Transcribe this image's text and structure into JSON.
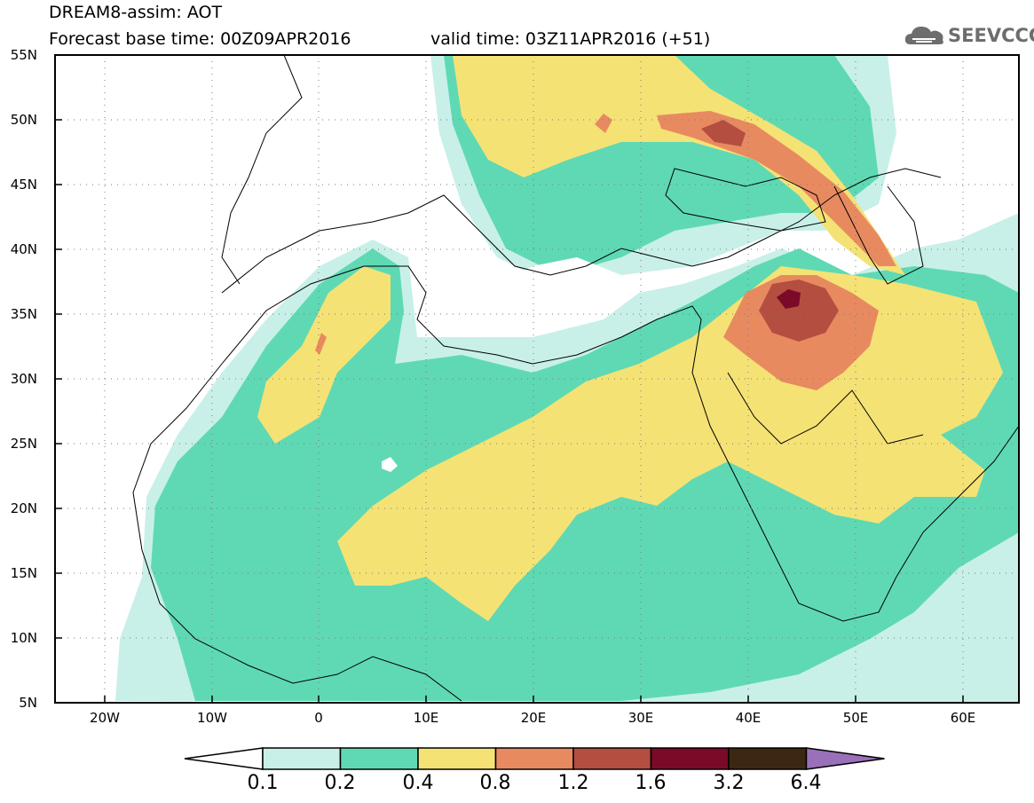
{
  "header": {
    "line1": "DREAM8-assim: AOT",
    "line2": "Forecast base time: 00Z09APR2016",
    "line3": "valid time: 03Z11APR2016 (+51)",
    "logo_text": "SEEVCCC",
    "logo_icon": "cloud-icon"
  },
  "map": {
    "lat_labels": [
      "55N",
      "50N",
      "45N",
      "40N",
      "35N",
      "30N",
      "25N",
      "20N",
      "15N",
      "10N",
      "5N"
    ],
    "lon_labels": [
      "20W",
      "10W",
      "0",
      "10E",
      "20E",
      "30E",
      "40E",
      "50E",
      "60E"
    ],
    "lat_range": [
      5,
      55
    ],
    "lon_range": [
      -25,
      65
    ],
    "grid": "dotted"
  },
  "colorbar": {
    "labels": [
      "0.1",
      "0.2",
      "0.4",
      "0.8",
      "1.2",
      "1.6",
      "3.2",
      "6.4"
    ],
    "colors": [
      "#ffffff",
      "#c8f0e8",
      "#5fd9b4",
      "#f5e275",
      "#e88a60",
      "#b44e40",
      "#7a0a28",
      "#3c2812",
      "#9a70b8"
    ]
  }
}
